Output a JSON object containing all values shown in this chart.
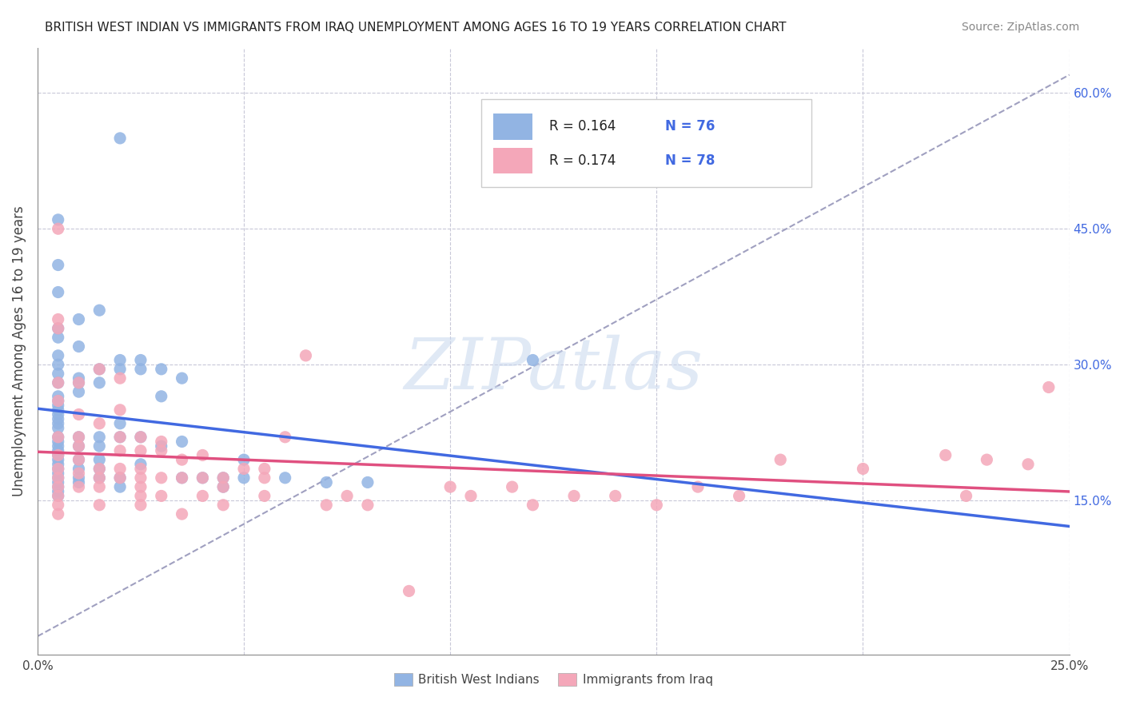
{
  "title": "BRITISH WEST INDIAN VS IMMIGRANTS FROM IRAQ UNEMPLOYMENT AMONG AGES 16 TO 19 YEARS CORRELATION CHART",
  "source": "Source: ZipAtlas.com",
  "ylabel": "Unemployment Among Ages 16 to 19 years",
  "xlim": [
    0.0,
    0.25
  ],
  "ylim": [
    -0.02,
    0.65
  ],
  "blue_R": "0.164",
  "blue_N": "76",
  "pink_R": "0.174",
  "pink_N": "78",
  "legend_labels": [
    "British West Indians",
    "Immigrants from Iraq"
  ],
  "blue_color": "#92b4e3",
  "pink_color": "#f4a7b9",
  "blue_line_color": "#4169e1",
  "pink_line_color": "#e05080",
  "dashed_line_color": "#a0a0c0",
  "blue_scatter_x": [
    0.02,
    0.005,
    0.005,
    0.005,
    0.015,
    0.01,
    0.005,
    0.005,
    0.01,
    0.005,
    0.005,
    0.005,
    0.01,
    0.005,
    0.01,
    0.005,
    0.005,
    0.005,
    0.005,
    0.005,
    0.005,
    0.005,
    0.005,
    0.005,
    0.005,
    0.005,
    0.005,
    0.005,
    0.005,
    0.005,
    0.005,
    0.005,
    0.005,
    0.005,
    0.005,
    0.005,
    0.005,
    0.01,
    0.01,
    0.01,
    0.01,
    0.01,
    0.01,
    0.01,
    0.015,
    0.015,
    0.015,
    0.015,
    0.015,
    0.015,
    0.015,
    0.02,
    0.02,
    0.02,
    0.02,
    0.02,
    0.02,
    0.025,
    0.025,
    0.025,
    0.025,
    0.03,
    0.03,
    0.03,
    0.035,
    0.035,
    0.035,
    0.04,
    0.045,
    0.045,
    0.05,
    0.05,
    0.06,
    0.07,
    0.08,
    0.12
  ],
  "blue_scatter_y": [
    0.55,
    0.46,
    0.41,
    0.38,
    0.36,
    0.35,
    0.34,
    0.33,
    0.32,
    0.31,
    0.3,
    0.29,
    0.285,
    0.28,
    0.27,
    0.265,
    0.26,
    0.255,
    0.25,
    0.245,
    0.24,
    0.235,
    0.23,
    0.22,
    0.215,
    0.21,
    0.205,
    0.2,
    0.195,
    0.19,
    0.185,
    0.18,
    0.175,
    0.17,
    0.165,
    0.16,
    0.155,
    0.28,
    0.22,
    0.21,
    0.195,
    0.185,
    0.175,
    0.17,
    0.295,
    0.28,
    0.22,
    0.21,
    0.195,
    0.185,
    0.175,
    0.305,
    0.295,
    0.235,
    0.22,
    0.175,
    0.165,
    0.305,
    0.295,
    0.22,
    0.19,
    0.295,
    0.265,
    0.21,
    0.285,
    0.215,
    0.175,
    0.175,
    0.175,
    0.165,
    0.195,
    0.175,
    0.175,
    0.17,
    0.17,
    0.305
  ],
  "pink_scatter_x": [
    0.005,
    0.005,
    0.005,
    0.005,
    0.005,
    0.005,
    0.005,
    0.005,
    0.005,
    0.005,
    0.005,
    0.005,
    0.005,
    0.01,
    0.01,
    0.01,
    0.01,
    0.01,
    0.01,
    0.01,
    0.015,
    0.015,
    0.015,
    0.015,
    0.015,
    0.015,
    0.02,
    0.02,
    0.02,
    0.02,
    0.02,
    0.02,
    0.025,
    0.025,
    0.025,
    0.025,
    0.025,
    0.025,
    0.025,
    0.03,
    0.03,
    0.03,
    0.03,
    0.035,
    0.035,
    0.035,
    0.04,
    0.04,
    0.04,
    0.045,
    0.045,
    0.045,
    0.05,
    0.055,
    0.055,
    0.055,
    0.06,
    0.065,
    0.07,
    0.075,
    0.08,
    0.09,
    0.1,
    0.105,
    0.115,
    0.12,
    0.13,
    0.14,
    0.15,
    0.16,
    0.17,
    0.18,
    0.2,
    0.22,
    0.225,
    0.23,
    0.24,
    0.245
  ],
  "pink_scatter_y": [
    0.45,
    0.35,
    0.34,
    0.28,
    0.26,
    0.22,
    0.2,
    0.185,
    0.175,
    0.165,
    0.155,
    0.145,
    0.135,
    0.28,
    0.245,
    0.22,
    0.21,
    0.195,
    0.18,
    0.165,
    0.295,
    0.235,
    0.185,
    0.175,
    0.165,
    0.145,
    0.285,
    0.25,
    0.22,
    0.205,
    0.185,
    0.175,
    0.22,
    0.205,
    0.185,
    0.175,
    0.165,
    0.155,
    0.145,
    0.215,
    0.205,
    0.175,
    0.155,
    0.195,
    0.175,
    0.135,
    0.2,
    0.175,
    0.155,
    0.175,
    0.165,
    0.145,
    0.185,
    0.185,
    0.175,
    0.155,
    0.22,
    0.31,
    0.145,
    0.155,
    0.145,
    0.05,
    0.165,
    0.155,
    0.165,
    0.145,
    0.155,
    0.155,
    0.145,
    0.165,
    0.155,
    0.195,
    0.185,
    0.2,
    0.155,
    0.195,
    0.19,
    0.275
  ]
}
